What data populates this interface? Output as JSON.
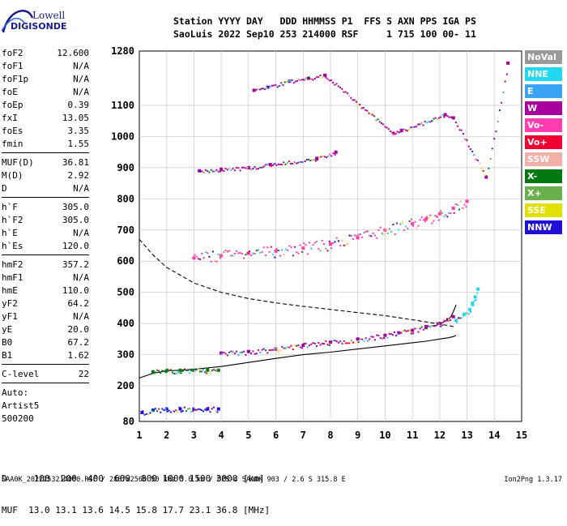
{
  "logo": {
    "line1": "Lowell",
    "line2": "DIGISONDE"
  },
  "header": {
    "line1": "Station YYYY DAY   DDD HHMMSS P1  FFS S AXN PPS IGA PS",
    "line2": "SaoLuis 2022 Sep10 253 214000 RSF     1 715 100 00- 11"
  },
  "params": [
    {
      "group": [
        {
          "name": "foF2",
          "value": "12.600"
        },
        {
          "name": "foF1",
          "value": "N/A"
        },
        {
          "name": "foF1p",
          "value": "N/A"
        },
        {
          "name": "foE",
          "value": "N/A"
        },
        {
          "name": "foEp",
          "value": "0.39"
        },
        {
          "name": "fxI",
          "value": "13.05"
        },
        {
          "name": "foEs",
          "value": "3.35"
        },
        {
          "name": "fmin",
          "value": "1.55"
        }
      ]
    },
    {
      "group": [
        {
          "name": "MUF(D)",
          "value": "36.81"
        },
        {
          "name": "M(D)",
          "value": "2.92"
        },
        {
          "name": "D",
          "value": "N/A"
        }
      ]
    },
    {
      "group": [
        {
          "name": "h`F",
          "value": "305.0"
        },
        {
          "name": "h`F2",
          "value": "305.0"
        },
        {
          "name": "h`E",
          "value": "N/A"
        },
        {
          "name": "h`Es",
          "value": "120.0"
        }
      ]
    },
    {
      "group": [
        {
          "name": "hmF2",
          "value": "357.2"
        },
        {
          "name": "hmF1",
          "value": "N/A"
        },
        {
          "name": "hmE",
          "value": "110.0"
        },
        {
          "name": "yF2",
          "value": "64.2"
        },
        {
          "name": "yF1",
          "value": "N/A"
        },
        {
          "name": "yE",
          "value": "20.0"
        },
        {
          "name": "B0",
          "value": "67.2"
        },
        {
          "name": "B1",
          "value": "1.62"
        }
      ]
    },
    {
      "group": [
        {
          "name": "C-level",
          "value": "22"
        }
      ]
    },
    {
      "group": [
        {
          "name": "Auto:",
          "value": ""
        },
        {
          "name": "Artist5",
          "value": ""
        },
        {
          "name": "500200",
          "value": ""
        }
      ]
    }
  ],
  "legend": [
    {
      "label": "NoVal",
      "color": "#999999"
    },
    {
      "label": "NNE",
      "color": "#22d8f0"
    },
    {
      "label": "E",
      "color": "#3aa2f2"
    },
    {
      "label": "W",
      "color": "#a8009c"
    },
    {
      "label": "Vo-",
      "color": "#ff3cb0"
    },
    {
      "label": "Vo+",
      "color": "#ee0033"
    },
    {
      "label": "SSW",
      "color": "#f2b0a8"
    },
    {
      "label": "X-",
      "color": "#007a10"
    },
    {
      "label": "X+",
      "color": "#6ab04c"
    },
    {
      "label": "SSE",
      "color": "#e2e000"
    },
    {
      "label": "NNW",
      "color": "#2010d8"
    }
  ],
  "bottom": {
    "line1": "D     100  200  400  600  800 1000 1500 3000 [km]",
    "line2": "MUF  13.0 13.1 13.6 14.5 15.8 17.7 23.1 36.8 [MHz]"
  },
  "footer": {
    "left": "SAA0K_2022253214000.RSF / 280fx256h 50 kHz 5.0 km / DPS-4 SAA0K 903 / 2.6 S 315.8 E",
    "right": "Ion2Png 1.3.17"
  },
  "chart_data": {
    "type": "scatter",
    "xlim": [
      1,
      15
    ],
    "ylim": [
      80,
      1280
    ],
    "xticks": [
      1,
      2,
      3,
      4,
      5,
      6,
      7,
      8,
      9,
      10,
      11,
      12,
      13,
      14,
      15
    ],
    "yticks": [
      80,
      200,
      300,
      400,
      500,
      600,
      700,
      800,
      900,
      1000,
      1100,
      1280
    ],
    "grid": true,
    "series": [
      {
        "name": "F2 trace O",
        "color_hint": "#a8009c",
        "x": [
          4.0,
          5.0,
          6.0,
          7.0,
          8.0,
          9.0,
          10.0,
          10.5,
          11.0,
          11.5,
          12.0,
          12.3,
          12.5
        ],
        "y": [
          305,
          310,
          318,
          330,
          340,
          350,
          362,
          370,
          378,
          390,
          400,
          412,
          422
        ]
      },
      {
        "name": "F2 multi-hop",
        "color_hint": "#ff3cb0",
        "x": [
          3.0,
          4.0,
          5.0,
          6.0,
          7.0,
          8.0,
          9.0,
          10.0,
          11.0,
          11.5,
          12.0,
          12.5,
          13.0
        ],
        "y": [
          610,
          618,
          625,
          632,
          642,
          655,
          675,
          700,
          720,
          735,
          752,
          770,
          792
        ]
      },
      {
        "name": "X trace",
        "color_hint": "#22d8f0",
        "x": [
          12.6,
          12.9,
          13.1,
          13.2,
          13.3,
          13.4
        ],
        "y": [
          410,
          430,
          445,
          465,
          485,
          510
        ]
      },
      {
        "name": "Es trace",
        "color_hint": "#007a10",
        "x": [
          1.5,
          2.0,
          2.5,
          3.0,
          3.5,
          3.9
        ],
        "y": [
          245,
          248,
          250,
          250,
          250,
          250
        ]
      },
      {
        "name": "Low echoes",
        "color_hint": "#2010d8",
        "x": [
          1.1,
          1.5,
          2.0,
          2.5,
          3.0,
          3.5,
          3.9
        ],
        "y": [
          110,
          118,
          122,
          122,
          122,
          122,
          122
        ]
      },
      {
        "name": "3rd hop",
        "color_hint": "#a8009c",
        "x": [
          3.2,
          4.0,
          5.0,
          5.8,
          7.5,
          8.2
        ],
        "y": [
          890,
          895,
          900,
          910,
          930,
          950
        ]
      },
      {
        "name": "Sparse high",
        "color_hint": "#a8009c",
        "x": [
          5.2,
          5.7,
          6.5,
          7.2,
          7.8,
          10.3,
          10.6,
          12.2,
          12.5,
          13.7,
          14.5
        ],
        "y": [
          1150,
          1160,
          1180,
          1190,
          1200,
          1010,
          1020,
          1070,
          1060,
          870,
          1240
        ]
      }
    ],
    "profile_solid": {
      "x": [
        1.0,
        1.5,
        2.0,
        2.5,
        3.0,
        4.0,
        5.0,
        6.0,
        7.0,
        8.0,
        9.0,
        10.0,
        11.0,
        11.5,
        12.0,
        12.3,
        12.5,
        12.6
      ],
      "y": [
        225,
        240,
        248,
        250,
        253,
        262,
        275,
        288,
        300,
        308,
        318,
        328,
        338,
        343,
        350,
        354,
        358,
        362
      ]
    },
    "profile_dashed": {
      "x": [
        1.0,
        1.5,
        2.0,
        3.0,
        4.0,
        5.0,
        6.0,
        7.0,
        8.0,
        9.0,
        10.0,
        11.0,
        11.5,
        12.0,
        12.4,
        12.6
      ],
      "y": [
        670,
        620,
        580,
        530,
        500,
        480,
        466,
        455,
        445,
        435,
        425,
        412,
        405,
        398,
        392,
        388
      ]
    },
    "trace_black": {
      "x": [
        11.8,
        12.0,
        12.2,
        12.4,
        12.5,
        12.6
      ],
      "y": [
        392,
        398,
        407,
        420,
        438,
        460
      ]
    }
  }
}
